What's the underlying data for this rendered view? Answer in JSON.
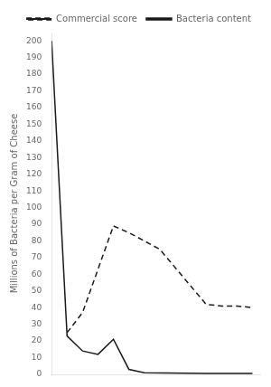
{
  "chart_data": {
    "type": "line",
    "title": "",
    "xlabel": "",
    "ylabel": "Millions of Bacteria per Gram of Cheese",
    "xlim": [
      0,
      135
    ],
    "xticks": [
      10,
      20,
      30,
      40,
      50,
      60,
      70,
      80,
      90,
      100,
      110,
      120,
      130
    ],
    "ylim": [
      0,
      205
    ],
    "yticks": [
      0,
      10,
      20,
      30,
      40,
      50,
      60,
      70,
      80,
      90,
      100,
      110,
      120,
      130,
      140,
      150,
      160,
      170,
      180,
      190,
      200
    ],
    "grid": false,
    "legend": "upper right",
    "tick_labels": "y",
    "series": [
      {
        "name": "Commercial score",
        "color": "#1a1a1a",
        "line_style": "dashed",
        "x": [
          10,
          20,
          40,
          50,
          60,
          70,
          100,
          110,
          120,
          130
        ],
        "values": [
          25,
          37,
          89,
          85,
          80,
          75,
          42,
          41,
          41,
          40
        ]
      },
      {
        "name": "Bacteria content",
        "color": "#1a1a1a",
        "line_style": "solid",
        "x": [
          0,
          10,
          20,
          30,
          40,
          50,
          60,
          100,
          110,
          120,
          130
        ],
        "values": [
          200,
          23,
          14,
          12,
          21,
          3,
          1,
          0.5,
          0.5,
          0.5,
          0.5
        ]
      }
    ]
  }
}
